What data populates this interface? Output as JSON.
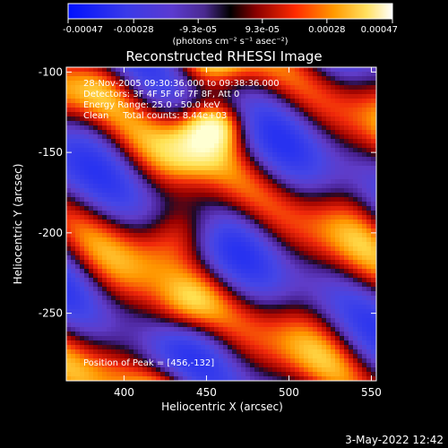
{
  "chart_data": {
    "type": "heatmap",
    "title": "Reconstructed RHESSI Image",
    "xlabel": "Heliocentric X (arcsec)",
    "ylabel": "Heliocentric Y (arcsec)",
    "xlim": [
      365,
      553
    ],
    "ylim": [
      -292,
      -97
    ],
    "x_ticks": [
      400,
      450,
      500,
      550
    ],
    "y_ticks": [
      -100,
      -150,
      -200,
      -250
    ],
    "colorbar": {
      "range": [
        -0.00047,
        0.00047
      ],
      "tick_values": [
        -0.00047,
        -0.00028,
        -9.3e-05,
        9.3e-05,
        0.00028,
        0.00047
      ],
      "tick_labels": [
        "-0.00047",
        "-0.00028",
        "-9.3e-05",
        "9.3e-05",
        "0.00028",
        "0.00047"
      ],
      "unit_label": "(photons cm⁻² s⁻¹ asec⁻²)"
    },
    "annotations": [
      "28-Nov-2005 09:30:36.000 to 09:38:36.000",
      "Detectors: 3F 4F 5F 6F 7F 8F, Att 0",
      "Energy Range: 25.0 - 50.0 keV",
      "Clean     Total counts: 8.44e+03"
    ],
    "peak_label": "Position of Peak = [456,-132]",
    "peak": [
      456,
      -132
    ],
    "colors": {
      "negative": "#3a40e8",
      "zero": "#2a1a66",
      "positive_mid": "#e8321a",
      "positive_high": "#ffffcc"
    }
  },
  "footer": {
    "date": "3-May-2022 12:42"
  }
}
